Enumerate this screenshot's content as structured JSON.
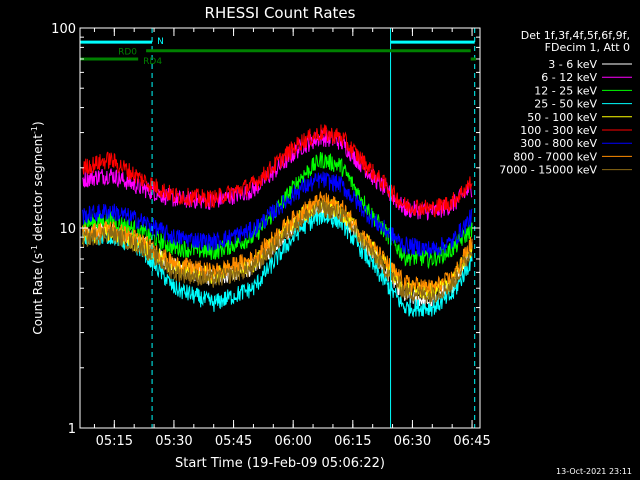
{
  "chart_data": {
    "type": "line",
    "title": "RHESSI Count Rates",
    "xlabel": "Start Time (19-Feb-09 05:06:22)",
    "ylabel_prefix": "Count Rate (s",
    "ylabel_sup": "-1",
    "ylabel_mid": " detector segment",
    "ylabel_sup2": "-1",
    "ylabel_suffix": ")",
    "yscale": "log",
    "ylim": [
      1,
      100
    ],
    "y_ticks": [
      {
        "v": 1,
        "label": "1"
      },
      {
        "v": 10,
        "label": "10"
      },
      {
        "v": 100,
        "label": "100"
      }
    ],
    "xlim": [
      "05:06:22",
      "06:47:00"
    ],
    "x_ticks": [
      "05:15",
      "05:30",
      "05:45",
      "06:00",
      "06:15",
      "06:30",
      "06:45"
    ],
    "legend_header": [
      "Det 1f,3f,4f,5f,6f,9f,",
      "FDecim 1, Att 0"
    ],
    "legend_position": "right",
    "timestamp": "13-Oct-2021 23:11",
    "annotations": [
      {
        "label": "N",
        "color": "#00ffff",
        "segments": [
          [
            "05:06:22",
            "05:24:30"
          ],
          [
            "06:24:30",
            "06:45:40"
          ]
        ],
        "level": 85
      },
      {
        "label": "RD0",
        "color": "#008000",
        "segments": [
          [
            "05:23:00",
            "06:44:40"
          ]
        ],
        "level": 77
      },
      {
        "label": "RD4",
        "color": "#008000",
        "segments": [
          [
            "05:06:22",
            "05:21:00"
          ],
          [
            "06:44:40",
            "06:46:00"
          ]
        ],
        "level": 70
      }
    ],
    "vlines": [
      {
        "time": "05:06:22",
        "style": "solid",
        "color": "#00ffff"
      },
      {
        "time": "05:24:30",
        "style": "dashed",
        "color": "#00ffff"
      },
      {
        "time": "06:24:30",
        "style": "solid",
        "color": "#00ffff"
      },
      {
        "time": "06:45:40",
        "style": "dashed",
        "color": "#00ffff"
      }
    ],
    "x": [
      "05:07",
      "05:14",
      "05:22",
      "05:30",
      "05:40",
      "05:50",
      "05:58",
      "06:02",
      "06:07",
      "06:12",
      "06:20",
      "06:28",
      "06:35",
      "06:40",
      "06:45"
    ],
    "series": [
      {
        "name": "3 - 6 keV",
        "color": "#ffffff",
        "values": [
          9.2,
          9.8,
          8.4,
          6.4,
          5.6,
          6.4,
          9.4,
          11.0,
          12.5,
          11.8,
          7.4,
          4.6,
          4.3,
          5.2,
          7.8
        ]
      },
      {
        "name": "6 - 12 keV",
        "color": "#ff00ff",
        "values": [
          17.5,
          18.5,
          15.8,
          14.0,
          13.6,
          15.5,
          21.5,
          25.5,
          28.5,
          27.0,
          18.0,
          12.5,
          12.0,
          13.0,
          16.0
        ]
      },
      {
        "name": "12 - 25 keV",
        "color": "#00ff00",
        "values": [
          10.5,
          11.0,
          9.5,
          8.0,
          7.6,
          9.0,
          14.0,
          18.0,
          22.0,
          20.5,
          11.5,
          7.2,
          7.0,
          7.8,
          10.0
        ]
      },
      {
        "name": "25 - 50 keV",
        "color": "#00ffff",
        "values": [
          8.8,
          9.2,
          7.8,
          5.0,
          4.2,
          5.0,
          8.0,
          10.0,
          11.5,
          10.8,
          6.5,
          4.0,
          4.0,
          4.6,
          7.0
        ]
      },
      {
        "name": "50 - 100 keV",
        "color": "#ffff00",
        "values": [
          9.0,
          9.6,
          8.2,
          6.3,
          5.8,
          6.6,
          9.8,
          11.5,
          13.0,
          12.2,
          7.8,
          5.0,
          4.8,
          5.4,
          8.0
        ]
      },
      {
        "name": "100 - 300 keV",
        "color": "#ff0000",
        "values": [
          20.0,
          22.0,
          17.5,
          14.5,
          14.0,
          16.5,
          23.0,
          27.0,
          30.0,
          28.5,
          19.0,
          13.0,
          12.5,
          13.5,
          17.0
        ]
      },
      {
        "name": "300 - 800 keV",
        "color": "#0000ff",
        "values": [
          11.5,
          12.2,
          10.8,
          9.0,
          8.5,
          9.8,
          13.5,
          15.8,
          17.5,
          16.5,
          11.0,
          8.2,
          7.8,
          8.5,
          11.5
        ]
      },
      {
        "name": "800 - 7000 keV",
        "color": "#ff8c00",
        "values": [
          9.4,
          10.0,
          8.6,
          6.6,
          6.0,
          7.0,
          10.2,
          12.0,
          13.8,
          12.8,
          8.0,
          5.3,
          5.0,
          5.6,
          8.5
        ]
      },
      {
        "name": "7000 - 15000 keV",
        "color": "#8b6914",
        "values": [
          8.8,
          9.4,
          8.0,
          6.0,
          5.5,
          6.3,
          9.3,
          11.0,
          12.6,
          11.8,
          7.4,
          4.8,
          4.6,
          5.2,
          7.8
        ]
      }
    ]
  }
}
